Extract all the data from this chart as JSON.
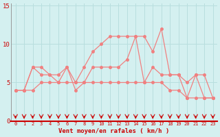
{
  "xlabel": "Vent moyen/en rafales ( km/h )",
  "x": [
    0,
    1,
    2,
    3,
    4,
    5,
    6,
    7,
    8,
    9,
    10,
    11,
    12,
    13,
    14,
    15,
    16,
    17,
    18,
    19,
    20,
    21,
    22,
    23
  ],
  "y_low": [
    4,
    4,
    4,
    5,
    5,
    5,
    5,
    5,
    5,
    5,
    5,
    5,
    5,
    5,
    5,
    5,
    5,
    5,
    4,
    4,
    3,
    3,
    3,
    3
  ],
  "y_mean": [
    4,
    4,
    7,
    6,
    6,
    5,
    7,
    4,
    5,
    7,
    7,
    7,
    7,
    8,
    11,
    5,
    7,
    6,
    6,
    6,
    5,
    6,
    3,
    3
  ],
  "y_gust": [
    4,
    4,
    7,
    7,
    6,
    6,
    7,
    5,
    7,
    9,
    10,
    11,
    11,
    11,
    11,
    11,
    9,
    12,
    6,
    6,
    3,
    6,
    6,
    3
  ],
  "line_color": "#f08080",
  "marker_color": "#f08080",
  "arrow_color": "#cc0000",
  "bg_color": "#d4f0f0",
  "grid_color": "#b8dede",
  "axis_color": "#cc0000",
  "tick_label_color": "#cc0000",
  "xlabel_color": "#cc0000",
  "ylim": [
    0,
    15
  ],
  "xlim": [
    -0.5,
    23.5
  ],
  "yticks": [
    0,
    5,
    10,
    15
  ],
  "xticks": [
    0,
    1,
    2,
    3,
    4,
    5,
    6,
    7,
    8,
    9,
    10,
    11,
    12,
    13,
    14,
    15,
    16,
    17,
    18,
    19,
    20,
    21,
    22,
    23
  ]
}
